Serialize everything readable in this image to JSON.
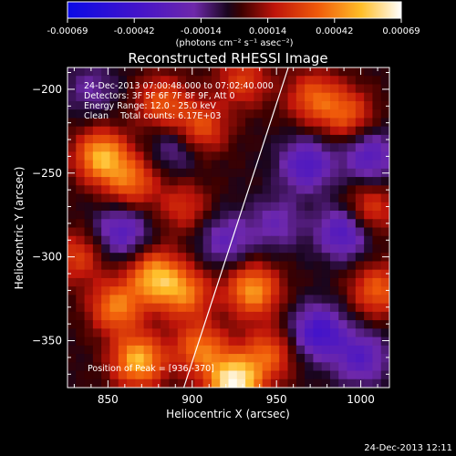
{
  "chart_data": {
    "type": "heatmap",
    "title": "Reconstructed RHESSI Image",
    "xlabel": "Heliocentric X (arcsec)",
    "ylabel": "Heliocentric Y (arcsec)",
    "xlim": [
      826,
      1017
    ],
    "ylim": [
      -378,
      -187
    ],
    "xticks": [
      850,
      900,
      950,
      1000
    ],
    "yticks": [
      -200,
      -250,
      -300,
      -350
    ],
    "colorbar": {
      "min": -0.00069,
      "max": 0.00069,
      "tick_labels": [
        "-0.00069",
        "-0.00042",
        "-0.00014",
        "0.00014",
        "0.00042",
        "0.00069"
      ],
      "unit_label": "(photons cm⁻² s⁻¹ asec⁻²)"
    },
    "annotations": {
      "time_range": "24-Dec-2013 07:00:48.000 to 07:02:40.000",
      "detectors": "Detectors: 3F 5F 6F 7F 8F 9F, Att 0",
      "energy": "Energy Range: 12.0 - 25.0 keV",
      "clean": "Clean",
      "total_counts": "Total counts: 6.17E+03",
      "peak": "Position of Peak = [936,-370]"
    },
    "limb_line": [
      [
        895,
        -378
      ],
      [
        957,
        -187
      ]
    ],
    "sources": [
      {
        "x": 846,
        "y": -240,
        "v": 0.0005
      },
      {
        "x": 864,
        "y": -255,
        "v": 0.00034
      },
      {
        "x": 882,
        "y": -208,
        "v": 0.00032
      },
      {
        "x": 905,
        "y": -223,
        "v": 0.00032
      },
      {
        "x": 930,
        "y": -195,
        "v": 0.00026
      },
      {
        "x": 972,
        "y": -205,
        "v": 0.00032
      },
      {
        "x": 992,
        "y": -215,
        "v": 0.0003
      },
      {
        "x": 878,
        "y": -312,
        "v": 0.00048
      },
      {
        "x": 896,
        "y": -322,
        "v": 0.00036
      },
      {
        "x": 855,
        "y": -330,
        "v": 0.0004
      },
      {
        "x": 936,
        "y": -320,
        "v": 0.00046
      },
      {
        "x": 868,
        "y": -362,
        "v": 0.00052
      },
      {
        "x": 905,
        "y": -355,
        "v": 0.00038
      },
      {
        "x": 925,
        "y": -375,
        "v": 0.00066
      },
      {
        "x": 945,
        "y": -358,
        "v": 0.00032
      },
      {
        "x": 1010,
        "y": -320,
        "v": 0.00034
      },
      {
        "x": 1005,
        "y": -272,
        "v": 0.00028
      },
      {
        "x": 895,
        "y": -270,
        "v": 0.00022
      },
      {
        "x": 968,
        "y": -245,
        "v": -0.00034
      },
      {
        "x": 990,
        "y": -285,
        "v": -0.00036
      },
      {
        "x": 975,
        "y": -345,
        "v": -0.0004
      },
      {
        "x": 858,
        "y": -285,
        "v": -0.0003
      },
      {
        "x": 920,
        "y": -290,
        "v": -0.00024
      },
      {
        "x": 1005,
        "y": -240,
        "v": -0.0003
      },
      {
        "x": 890,
        "y": -235,
        "v": -0.00018
      },
      {
        "x": 840,
        "y": -200,
        "v": -0.00016
      },
      {
        "x": 1000,
        "y": -360,
        "v": -0.0003
      },
      {
        "x": 950,
        "y": -280,
        "v": -0.0002
      },
      {
        "x": 832,
        "y": -300,
        "v": 0.00026
      }
    ]
  },
  "footer_timestamp": "24-Dec-2013 12:11"
}
